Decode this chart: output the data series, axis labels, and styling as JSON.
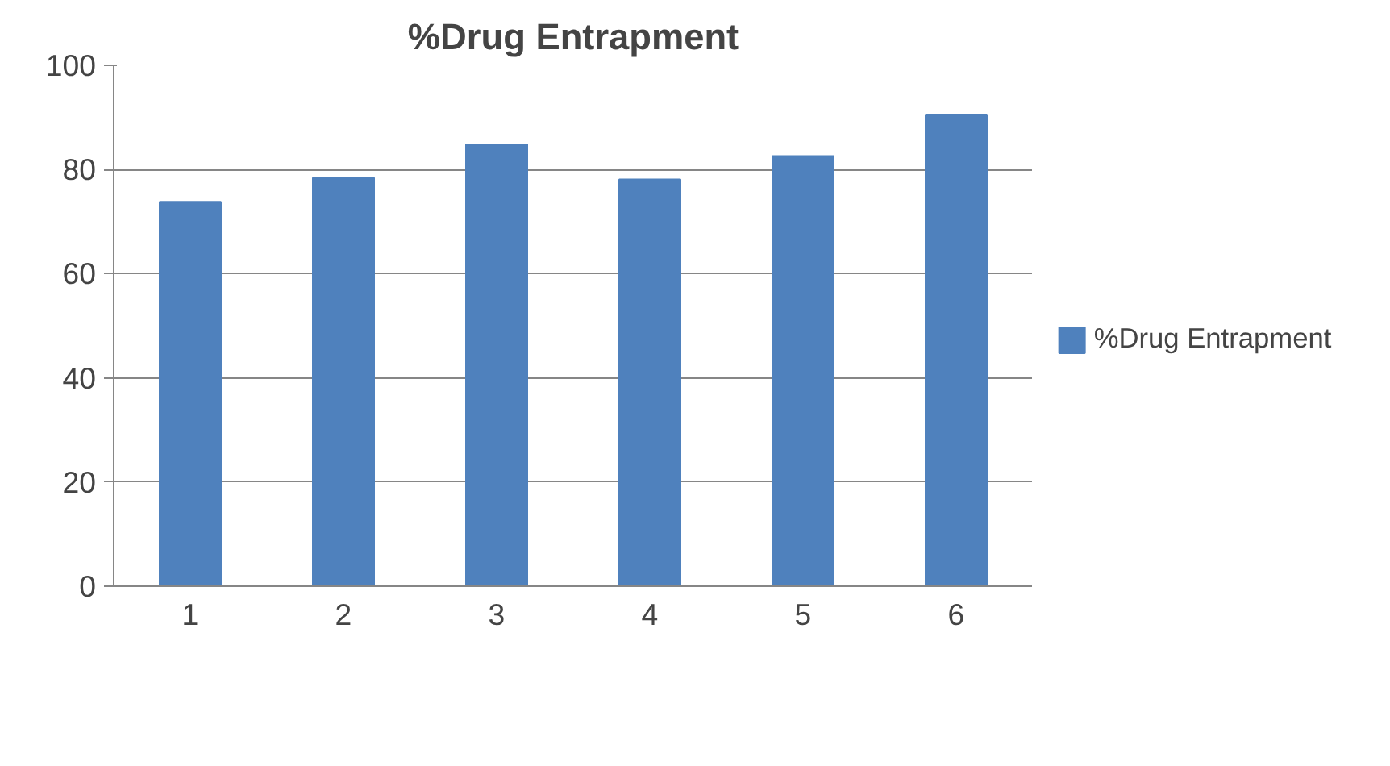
{
  "chart_data": {
    "type": "bar",
    "title": "%Drug Entrapment",
    "categories": [
      "1",
      "2",
      "3",
      "4",
      "5",
      "6"
    ],
    "series": [
      {
        "name": "%Drug Entrapment",
        "color": "#4f81bd",
        "values": [
          73.8,
          78.4,
          84.8,
          78.1,
          82.6,
          90.4
        ]
      }
    ],
    "ylim": [
      0,
      100
    ],
    "yticks": [
      0,
      20,
      40,
      60,
      80,
      100
    ],
    "grid": "y",
    "legend": "right"
  }
}
